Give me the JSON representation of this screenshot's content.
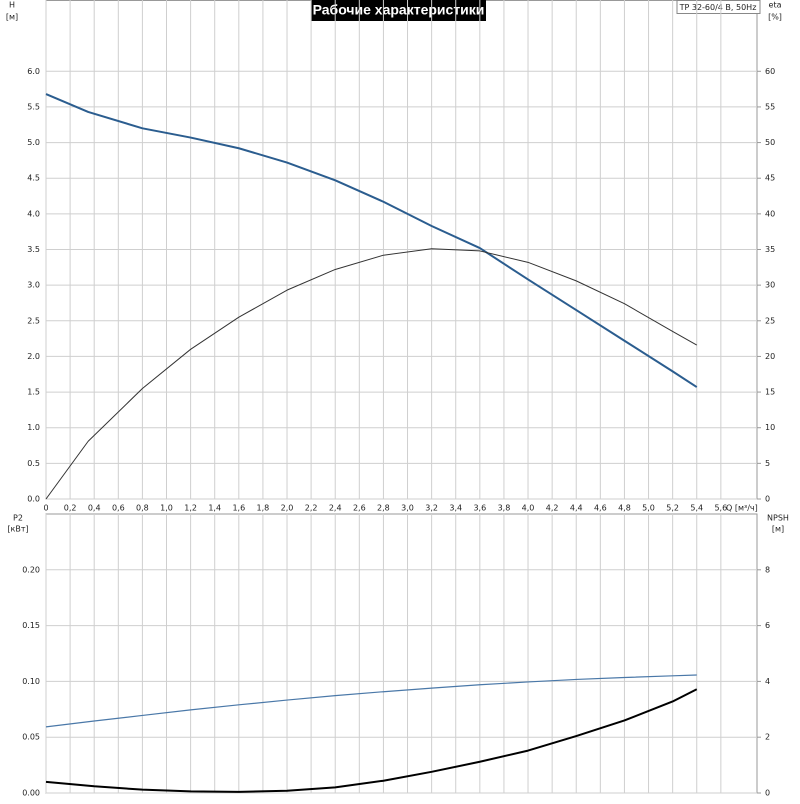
{
  "chart_data": [
    {
      "type": "line",
      "title": "Рабочие характеристики",
      "model_label": "TP 32-60/4 B, 50Hz",
      "x_label": "Q [м³/ч]",
      "y_label": "H",
      "y_unit": "[м]",
      "y2_label": "eta",
      "y2_unit": "[%]",
      "xlim": [
        0,
        5.9
      ],
      "xticks": [
        0,
        {
          "value": 0.2,
          "label": "0,2"
        },
        {
          "value": 0.4,
          "label": "0,4"
        },
        {
          "value": 0.6,
          "label": "0,6"
        },
        {
          "value": 0.8,
          "label": "0,8"
        },
        {
          "value": 1.0,
          "label": "1,0"
        },
        {
          "value": 1.2,
          "label": "1,2"
        },
        {
          "value": 1.4,
          "label": "1,4"
        },
        {
          "value": 1.6,
          "label": "1,6"
        },
        {
          "value": 1.8,
          "label": "1,8"
        },
        {
          "value": 2.0,
          "label": "2,0"
        },
        {
          "value": 2.2,
          "label": "2,2"
        },
        {
          "value": 2.4,
          "label": "2,4"
        },
        {
          "value": 2.6,
          "label": "2,6"
        },
        {
          "value": 2.8,
          "label": "2,8"
        },
        {
          "value": 3.0,
          "label": "3,0"
        },
        {
          "value": 3.2,
          "label": "3,2"
        },
        {
          "value": 3.4,
          "label": "3,4"
        },
        {
          "value": 3.6,
          "label": "3,6"
        },
        {
          "value": 3.8,
          "label": "3,8"
        },
        {
          "value": 4.0,
          "label": "4,0"
        },
        {
          "value": 4.2,
          "label": "4,2"
        },
        {
          "value": 4.4,
          "label": "4,4"
        },
        {
          "value": 4.6,
          "label": "4,6"
        },
        {
          "value": 4.8,
          "label": "4,8"
        },
        {
          "value": 5.0,
          "label": "5,0"
        },
        {
          "value": 5.2,
          "label": "5,2"
        },
        {
          "value": 5.4,
          "label": "5,4"
        },
        {
          "value": 5.6,
          "label": "5,6"
        }
      ],
      "ylim": [
        0,
        7
      ],
      "yticks": [
        {
          "value": 0,
          "label": "0.0"
        },
        0.5,
        {
          "value": 1,
          "label": "1.0"
        },
        1.5,
        {
          "value": 2,
          "label": "2.0"
        },
        2.5,
        {
          "value": 3,
          "label": "3.0"
        },
        3.5,
        {
          "value": 4,
          "label": "4.0"
        },
        4.5,
        {
          "value": 5,
          "label": "5.0"
        },
        5.5,
        {
          "value": 6,
          "label": "6.0"
        }
      ],
      "y2lim": [
        0,
        70
      ],
      "y2ticks": [
        0,
        5,
        10,
        15,
        20,
        25,
        30,
        35,
        40,
        45,
        50,
        55,
        60
      ],
      "grid": true,
      "x": [
        0,
        0.35,
        0.8,
        1.2,
        1.6,
        2.0,
        2.4,
        2.8,
        3.2,
        3.6,
        4.0,
        4.4,
        4.8,
        5.2,
        5.4
      ],
      "series": [
        {
          "color": "#2b5d8f",
          "width": 2,
          "values": [
            5.68,
            5.43,
            5.2,
            5.07,
            4.92,
            4.72,
            4.47,
            4.17,
            3.83,
            3.52,
            3.08,
            2.65,
            2.22,
            1.79,
            1.57
          ]
        },
        {
          "color": "#333333",
          "width": 1,
          "axis": "y2",
          "values": [
            0,
            8.1,
            15.5,
            21,
            25.5,
            29.3,
            32.2,
            34.2,
            35.1,
            34.8,
            33.2,
            30.6,
            27.4,
            23.5,
            21.6
          ]
        }
      ]
    },
    {
      "type": "line",
      "y_label": "P2",
      "y_unit": "[кВт]",
      "y2_label": "NPSH",
      "y2_unit": "[м]",
      "xlim": [
        0,
        5.9
      ],
      "ylim": [
        0,
        0.25
      ],
      "yticks": [
        {
          "value": 0,
          "label": "0.00"
        },
        {
          "value": 0.05,
          "label": "0.05"
        },
        {
          "value": 0.1,
          "label": "0.10"
        },
        {
          "value": 0.15,
          "label": "0.15"
        },
        {
          "value": 0.2,
          "label": "0.20"
        }
      ],
      "y2lim": [
        0,
        10
      ],
      "y2ticks": [
        0,
        2,
        4,
        6,
        8
      ],
      "grid": true,
      "x": [
        0,
        0.4,
        0.8,
        1.2,
        1.6,
        2.0,
        2.4,
        2.8,
        3.2,
        3.6,
        4.0,
        4.4,
        4.8,
        5.2,
        5.4
      ],
      "series": [
        {
          "color": "#000000",
          "width": 2,
          "values": [
            0.01,
            0.006,
            0.003,
            0.0015,
            0.001,
            0.002,
            0.005,
            0.011,
            0.019,
            0.028,
            0.038,
            0.051,
            0.065,
            0.082,
            0.093
          ]
        },
        {
          "color": "#4a78a8",
          "width": 1.2,
          "axis": "y2",
          "values": [
            2.37,
            2.58,
            2.78,
            2.98,
            3.16,
            3.33,
            3.49,
            3.63,
            3.76,
            3.88,
            3.98,
            4.07,
            4.14,
            4.2,
            4.23
          ]
        }
      ]
    }
  ]
}
